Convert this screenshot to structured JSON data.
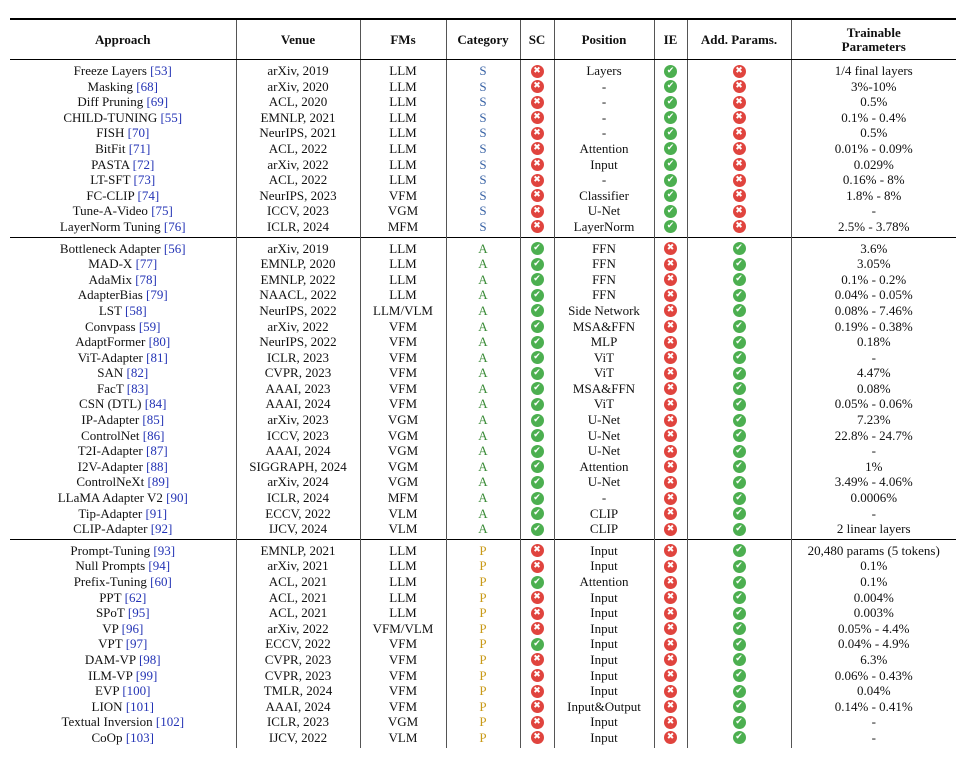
{
  "headers": {
    "approach": "Approach",
    "venue": "Venue",
    "fms": "FMs",
    "category": "Category",
    "sc": "SC",
    "position": "Position",
    "ie": "IE",
    "add_params": "Add. Params.",
    "trainable_1": "Trainable",
    "trainable_2": "Parameters"
  },
  "icons": {
    "yes": "check-circle-icon",
    "no": "x-circle-icon"
  },
  "colors": {
    "check": "#4caf50",
    "cross": "#e0443e",
    "cite": "#2333b5",
    "cat_S": "#3a64a6",
    "cat_A": "#3d8d3a",
    "cat_P": "#c99a18"
  },
  "groups": [
    {
      "rows": [
        {
          "name": "Freeze Layers ",
          "ref": "[53]",
          "venue": "arXiv, 2019",
          "fm": "LLM",
          "cat": "S",
          "sc": false,
          "pos": "Layers",
          "ie": true,
          "add": false,
          "tp": "1/4 final layers"
        },
        {
          "name": "Masking ",
          "ref": "[68]",
          "venue": "arXiv, 2020",
          "fm": "LLM",
          "cat": "S",
          "sc": false,
          "pos": "-",
          "ie": true,
          "add": false,
          "tp": "3%-10%"
        },
        {
          "name": "Diff Pruning ",
          "ref": "[69]",
          "venue": "ACL, 2020",
          "fm": "LLM",
          "cat": "S",
          "sc": false,
          "pos": "-",
          "ie": true,
          "add": false,
          "tp": "0.5%"
        },
        {
          "name": "CHILD-TUNING ",
          "ref": "[55]",
          "venue": "EMNLP, 2021",
          "fm": "LLM",
          "cat": "S",
          "sc": false,
          "pos": "-",
          "ie": true,
          "add": false,
          "tp": "0.1% - 0.4%"
        },
        {
          "name": "FISH ",
          "ref": "[70]",
          "venue": "NeurIPS, 2021",
          "fm": "LLM",
          "cat": "S",
          "sc": false,
          "pos": "-",
          "ie": true,
          "add": false,
          "tp": "0.5%"
        },
        {
          "name": "BitFit ",
          "ref": "[71]",
          "venue": "ACL, 2022",
          "fm": "LLM",
          "cat": "S",
          "sc": false,
          "pos": "Attention",
          "ie": true,
          "add": false,
          "tp": "0.01% - 0.09%"
        },
        {
          "name": "PASTA ",
          "ref": "[72]",
          "venue": "arXiv, 2022",
          "fm": "LLM",
          "cat": "S",
          "sc": false,
          "pos": "Input",
          "ie": true,
          "add": false,
          "tp": "0.029%"
        },
        {
          "name": "LT-SFT ",
          "ref": "[73]",
          "venue": "ACL, 2022",
          "fm": "LLM",
          "cat": "S",
          "sc": false,
          "pos": "-",
          "ie": true,
          "add": false,
          "tp": "0.16% - 8%"
        },
        {
          "name": "FC-CLIP ",
          "ref": "[74]",
          "venue": "NeurIPS, 2023",
          "fm": "VFM",
          "cat": "S",
          "sc": false,
          "pos": "Classifier",
          "ie": true,
          "add": false,
          "tp": "1.8% - 8%"
        },
        {
          "name": "Tune-A-Video ",
          "ref": "[75]",
          "venue": "ICCV, 2023",
          "fm": "VGM",
          "cat": "S",
          "sc": false,
          "pos": "U-Net",
          "ie": true,
          "add": false,
          "tp": "-"
        },
        {
          "name": "LayerNorm Tuning ",
          "ref": "[76]",
          "venue": "ICLR, 2024",
          "fm": "MFM",
          "cat": "S",
          "sc": false,
          "pos": "LayerNorm",
          "ie": true,
          "add": false,
          "tp": "2.5% - 3.78%"
        }
      ]
    },
    {
      "rows": [
        {
          "name": "Bottleneck Adapter ",
          "ref": "[56]",
          "venue": "arXiv, 2019",
          "fm": "LLM",
          "cat": "A",
          "sc": true,
          "pos": "FFN",
          "ie": false,
          "add": true,
          "tp": "3.6%"
        },
        {
          "name": "MAD-X ",
          "ref": "[77]",
          "venue": "EMNLP, 2020",
          "fm": "LLM",
          "cat": "A",
          "sc": true,
          "pos": "FFN",
          "ie": false,
          "add": true,
          "tp": "3.05%"
        },
        {
          "name": "AdaMix ",
          "ref": "[78]",
          "venue": "EMNLP, 2022",
          "fm": "LLM",
          "cat": "A",
          "sc": true,
          "pos": "FFN",
          "ie": false,
          "add": true,
          "tp": "0.1% - 0.2%"
        },
        {
          "name": "AdapterBias ",
          "ref": "[79]",
          "venue": "NAACL, 2022",
          "fm": "LLM",
          "cat": "A",
          "sc": true,
          "pos": "FFN",
          "ie": false,
          "add": true,
          "tp": "0.04% - 0.05%"
        },
        {
          "name": "LST ",
          "ref": "[58]",
          "venue": "NeurIPS, 2022",
          "fm": "LLM/VLM",
          "cat": "A",
          "sc": true,
          "pos": "Side Network",
          "ie": false,
          "add": true,
          "tp": "0.08% - 7.46%"
        },
        {
          "name": "Convpass ",
          "ref": "[59]",
          "venue": "arXiv, 2022",
          "fm": "VFM",
          "cat": "A",
          "sc": true,
          "pos": "MSA&FFN",
          "ie": false,
          "add": true,
          "tp": "0.19% - 0.38%"
        },
        {
          "name": "AdaptFormer ",
          "ref": "[80]",
          "venue": "NeurIPS, 2022",
          "fm": "VFM",
          "cat": "A",
          "sc": true,
          "pos": "MLP",
          "ie": false,
          "add": true,
          "tp": "0.18%"
        },
        {
          "name": "ViT-Adapter ",
          "ref": "[81]",
          "venue": "ICLR, 2023",
          "fm": "VFM",
          "cat": "A",
          "sc": true,
          "pos": "ViT",
          "ie": false,
          "add": true,
          "tp": "-"
        },
        {
          "name": "SAN ",
          "ref": "[82]",
          "venue": "CVPR, 2023",
          "fm": "VFM",
          "cat": "A",
          "sc": true,
          "pos": "ViT",
          "ie": false,
          "add": true,
          "tp": "4.47%"
        },
        {
          "name": "FacT ",
          "ref": "[83]",
          "venue": "AAAI, 2023",
          "fm": "VFM",
          "cat": "A",
          "sc": true,
          "pos": "MSA&FFN",
          "ie": false,
          "add": true,
          "tp": "0.08%"
        },
        {
          "name": "CSN (DTL) ",
          "ref": "[84]",
          "venue": "AAAI, 2024",
          "fm": "VFM",
          "cat": "A",
          "sc": true,
          "pos": "ViT",
          "ie": false,
          "add": true,
          "tp": "0.05% - 0.06%"
        },
        {
          "name": "IP-Adapter ",
          "ref": "[85]",
          "venue": "arXiv, 2023",
          "fm": "VGM",
          "cat": "A",
          "sc": true,
          "pos": "U-Net",
          "ie": false,
          "add": true,
          "tp": "7.23%"
        },
        {
          "name": "ControlNet ",
          "ref": "[86]",
          "venue": "ICCV, 2023",
          "fm": "VGM",
          "cat": "A",
          "sc": true,
          "pos": "U-Net",
          "ie": false,
          "add": true,
          "tp": "22.8% - 24.7%"
        },
        {
          "name": "T2I-Adapter ",
          "ref": "[87]",
          "venue": "AAAI, 2024",
          "fm": "VGM",
          "cat": "A",
          "sc": true,
          "pos": "U-Net",
          "ie": false,
          "add": true,
          "tp": "-"
        },
        {
          "name": "I2V-Adapter ",
          "ref": "[88]",
          "venue": "SIGGRAPH, 2024",
          "fm": "VGM",
          "cat": "A",
          "sc": true,
          "pos": "Attention",
          "ie": false,
          "add": true,
          "tp": "1%"
        },
        {
          "name": "ControlNeXt ",
          "ref": "[89]",
          "venue": "arXiv, 2024",
          "fm": "VGM",
          "cat": "A",
          "sc": true,
          "pos": "U-Net",
          "ie": false,
          "add": true,
          "tp": "3.49% - 4.06%"
        },
        {
          "name": "LLaMA Adapter V2 ",
          "ref": "[90]",
          "venue": "ICLR, 2024",
          "fm": "MFM",
          "cat": "A",
          "sc": true,
          "pos": "-",
          "ie": false,
          "add": true,
          "tp": "0.0006%"
        },
        {
          "name": "Tip-Adapter ",
          "ref": "[91]",
          "venue": "ECCV, 2022",
          "fm": "VLM",
          "cat": "A",
          "sc": true,
          "pos": "CLIP",
          "ie": false,
          "add": true,
          "tp": "-"
        },
        {
          "name": "CLIP-Adapter ",
          "ref": "[92]",
          "venue": "IJCV, 2024",
          "fm": "VLM",
          "cat": "A",
          "sc": true,
          "pos": "CLIP",
          "ie": false,
          "add": true,
          "tp": "2 linear layers"
        }
      ]
    },
    {
      "rows": [
        {
          "name": "Prompt-Tuning ",
          "ref": "[93]",
          "venue": "EMNLP, 2021",
          "fm": "LLM",
          "cat": "P",
          "sc": false,
          "pos": "Input",
          "ie": false,
          "add": true,
          "tp": "20,480 params (5 tokens)"
        },
        {
          "name": "Null Prompts ",
          "ref": "[94]",
          "venue": "arXiv, 2021",
          "fm": "LLM",
          "cat": "P",
          "sc": false,
          "pos": "Input",
          "ie": false,
          "add": true,
          "tp": "0.1%"
        },
        {
          "name": "Prefix-Tuning ",
          "ref": "[60]",
          "venue": "ACL, 2021",
          "fm": "LLM",
          "cat": "P",
          "sc": true,
          "pos": "Attention",
          "ie": false,
          "add": true,
          "tp": "0.1%"
        },
        {
          "name": "PPT ",
          "ref": "[62]",
          "venue": "ACL, 2021",
          "fm": "LLM",
          "cat": "P",
          "sc": false,
          "pos": "Input",
          "ie": false,
          "add": true,
          "tp": "0.004%"
        },
        {
          "name": "SPoT ",
          "ref": "[95]",
          "venue": "ACL, 2021",
          "fm": "LLM",
          "cat": "P",
          "sc": false,
          "pos": "Input",
          "ie": false,
          "add": true,
          "tp": "0.003%"
        },
        {
          "name": "VP ",
          "ref": "[96]",
          "venue": "arXiv, 2022",
          "fm": "VFM/VLM",
          "cat": "P",
          "sc": false,
          "pos": "Input",
          "ie": false,
          "add": true,
          "tp": "0.05% - 4.4%"
        },
        {
          "name": "VPT ",
          "ref": "[97]",
          "venue": "ECCV, 2022",
          "fm": "VFM",
          "cat": "P",
          "sc": true,
          "pos": "Input",
          "ie": false,
          "add": true,
          "tp": "0.04% - 4.9%"
        },
        {
          "name": "DAM-VP ",
          "ref": "[98]",
          "venue": "CVPR, 2023",
          "fm": "VFM",
          "cat": "P",
          "sc": false,
          "pos": "Input",
          "ie": false,
          "add": true,
          "tp": "6.3%"
        },
        {
          "name": "ILM-VP ",
          "ref": "[99]",
          "venue": "CVPR, 2023",
          "fm": "VFM",
          "cat": "P",
          "sc": false,
          "pos": "Input",
          "ie": false,
          "add": true,
          "tp": "0.06% - 0.43%"
        },
        {
          "name": "EVP ",
          "ref": "[100]",
          "venue": "TMLR, 2024",
          "fm": "VFM",
          "cat": "P",
          "sc": false,
          "pos": "Input",
          "ie": false,
          "add": true,
          "tp": "0.04%"
        },
        {
          "name": "LION ",
          "ref": "[101]",
          "venue": "AAAI, 2024",
          "fm": "VFM",
          "cat": "P",
          "sc": false,
          "pos": "Input&Output",
          "ie": false,
          "add": true,
          "tp": "0.14% - 0.41%"
        },
        {
          "name": "Textual Inversion ",
          "ref": "[102]",
          "venue": "ICLR, 2023",
          "fm": "VGM",
          "cat": "P",
          "sc": false,
          "pos": "Input",
          "ie": false,
          "add": true,
          "tp": "-"
        },
        {
          "name": "CoOp ",
          "ref": "[103]",
          "venue": "IJCV, 2022",
          "fm": "VLM",
          "cat": "P",
          "sc": false,
          "pos": "Input",
          "ie": false,
          "add": true,
          "tp": "-"
        }
      ]
    }
  ]
}
